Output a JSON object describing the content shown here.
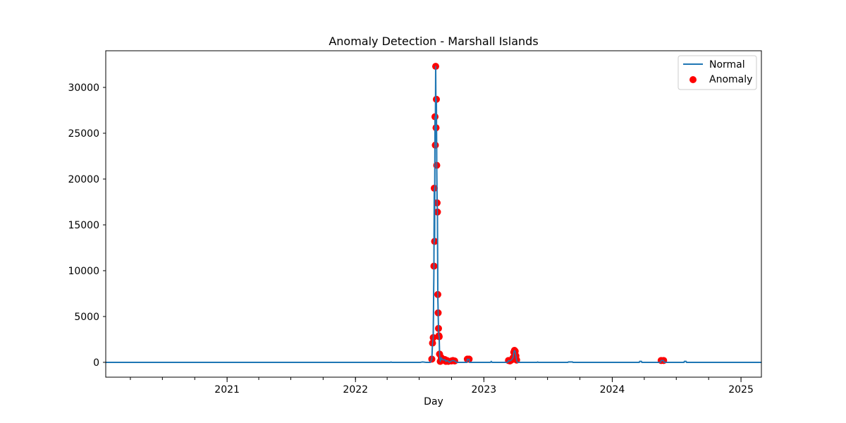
{
  "chart_data": {
    "type": "line",
    "title": "Anomaly Detection - Marshall Islands",
    "xlabel": "Day",
    "ylabel": "",
    "x_range": [
      "2020-01-22",
      "2025-02-28"
    ],
    "ylim": [
      -1620,
      34000
    ],
    "x_ticks": [
      {
        "label": "2021",
        "date": "2021-01-01"
      },
      {
        "label": "2022",
        "date": "2022-01-01"
      },
      {
        "label": "2023",
        "date": "2023-01-01"
      },
      {
        "label": "2024",
        "date": "2024-01-01"
      },
      {
        "label": "2025",
        "date": "2025-01-01"
      }
    ],
    "y_ticks": [
      0,
      5000,
      10000,
      15000,
      20000,
      25000,
      30000
    ],
    "legend_position": "top-right",
    "colors": {
      "normal": "#1f77b4",
      "anomaly": "#ff0000"
    },
    "series": [
      {
        "name": "Normal",
        "kind": "line",
        "points": [
          [
            "2020-01-22",
            0
          ],
          [
            "2022-04-10",
            0
          ],
          [
            "2022-04-12",
            30
          ],
          [
            "2022-04-14",
            0
          ],
          [
            "2022-07-05",
            0
          ],
          [
            "2022-07-10",
            40
          ],
          [
            "2022-07-20",
            0
          ],
          [
            "2022-08-02",
            0
          ],
          [
            "2022-08-06",
            350
          ],
          [
            "2022-08-08",
            2100
          ],
          [
            "2022-08-10",
            2700
          ],
          [
            "2022-08-12",
            10500
          ],
          [
            "2022-08-13",
            19000
          ],
          [
            "2022-08-14",
            13200
          ],
          [
            "2022-08-15",
            26800
          ],
          [
            "2022-08-16",
            23700
          ],
          [
            "2022-08-17",
            32300
          ],
          [
            "2022-08-18",
            25600
          ],
          [
            "2022-08-19",
            28700
          ],
          [
            "2022-08-20",
            21500
          ],
          [
            "2022-08-21",
            17400
          ],
          [
            "2022-08-22",
            16400
          ],
          [
            "2022-08-23",
            7400
          ],
          [
            "2022-08-24",
            5400
          ],
          [
            "2022-08-25",
            3700
          ],
          [
            "2022-08-26",
            2900
          ],
          [
            "2022-08-27",
            2800
          ],
          [
            "2022-08-28",
            900
          ],
          [
            "2022-08-30",
            100
          ],
          [
            "2022-09-02",
            500
          ],
          [
            "2022-09-05",
            300
          ],
          [
            "2022-09-08",
            250
          ],
          [
            "2022-09-12",
            300
          ],
          [
            "2022-09-15",
            100
          ],
          [
            "2022-09-18",
            200
          ],
          [
            "2022-09-22",
            100
          ],
          [
            "2022-09-25",
            0
          ],
          [
            "2022-10-01",
            150
          ],
          [
            "2022-10-05",
            200
          ],
          [
            "2022-10-10",
            150
          ],
          [
            "2022-10-15",
            0
          ],
          [
            "2022-11-14",
            0
          ],
          [
            "2022-11-15",
            350
          ],
          [
            "2022-11-16",
            300
          ],
          [
            "2022-11-20",
            350
          ],
          [
            "2022-11-21",
            0
          ],
          [
            "2023-01-20",
            0
          ],
          [
            "2023-01-22",
            100
          ],
          [
            "2023-01-24",
            0
          ],
          [
            "2023-03-10",
            0
          ],
          [
            "2023-03-12",
            200
          ],
          [
            "2023-03-16",
            150
          ],
          [
            "2023-03-20",
            250
          ],
          [
            "2023-03-25",
            500
          ],
          [
            "2023-03-27",
            1100
          ],
          [
            "2023-03-29",
            1300
          ],
          [
            "2023-03-31",
            1200
          ],
          [
            "2023-04-02",
            700
          ],
          [
            "2023-04-04",
            250
          ],
          [
            "2023-04-06",
            0
          ],
          [
            "2023-06-01",
            0
          ],
          [
            "2023-06-03",
            30
          ],
          [
            "2023-06-05",
            0
          ],
          [
            "2023-08-28",
            0
          ],
          [
            "2023-08-29",
            40
          ],
          [
            "2023-09-10",
            40
          ],
          [
            "2023-09-11",
            0
          ],
          [
            "2024-03-18",
            0
          ],
          [
            "2024-03-19",
            100
          ],
          [
            "2024-03-24",
            100
          ],
          [
            "2024-03-25",
            0
          ],
          [
            "2024-05-18",
            0
          ],
          [
            "2024-05-19",
            200
          ],
          [
            "2024-05-26",
            200
          ],
          [
            "2024-05-27",
            0
          ],
          [
            "2024-07-23",
            0
          ],
          [
            "2024-07-24",
            100
          ],
          [
            "2024-07-29",
            100
          ],
          [
            "2024-07-30",
            0
          ],
          [
            "2025-02-28",
            0
          ]
        ]
      },
      {
        "name": "Anomaly",
        "kind": "scatter",
        "points": [
          [
            "2022-08-06",
            350
          ],
          [
            "2022-08-08",
            2100
          ],
          [
            "2022-08-10",
            2700
          ],
          [
            "2022-08-12",
            10500
          ],
          [
            "2022-08-13",
            19000
          ],
          [
            "2022-08-14",
            13200
          ],
          [
            "2022-08-15",
            26800
          ],
          [
            "2022-08-16",
            23700
          ],
          [
            "2022-08-17",
            32300
          ],
          [
            "2022-08-18",
            25600
          ],
          [
            "2022-08-19",
            28700
          ],
          [
            "2022-08-20",
            21500
          ],
          [
            "2022-08-21",
            17400
          ],
          [
            "2022-08-22",
            16400
          ],
          [
            "2022-08-23",
            7400
          ],
          [
            "2022-08-24",
            5400
          ],
          [
            "2022-08-25",
            3700
          ],
          [
            "2022-08-26",
            2900
          ],
          [
            "2022-08-27",
            2800
          ],
          [
            "2022-08-28",
            900
          ],
          [
            "2022-08-30",
            100
          ],
          [
            "2022-09-02",
            500
          ],
          [
            "2022-09-05",
            300
          ],
          [
            "2022-09-08",
            250
          ],
          [
            "2022-09-12",
            300
          ],
          [
            "2022-09-15",
            100
          ],
          [
            "2022-09-18",
            200
          ],
          [
            "2022-09-22",
            100
          ],
          [
            "2022-10-01",
            150
          ],
          [
            "2022-10-05",
            200
          ],
          [
            "2022-10-10",
            150
          ],
          [
            "2022-11-15",
            350
          ],
          [
            "2022-11-20",
            350
          ],
          [
            "2023-03-12",
            200
          ],
          [
            "2023-03-16",
            150
          ],
          [
            "2023-03-20",
            250
          ],
          [
            "2023-03-25",
            500
          ],
          [
            "2023-03-27",
            1100
          ],
          [
            "2023-03-29",
            1300
          ],
          [
            "2023-03-31",
            1200
          ],
          [
            "2023-04-02",
            700
          ],
          [
            "2023-04-04",
            250
          ],
          [
            "2024-05-19",
            200
          ],
          [
            "2024-05-26",
            200
          ]
        ]
      }
    ]
  }
}
